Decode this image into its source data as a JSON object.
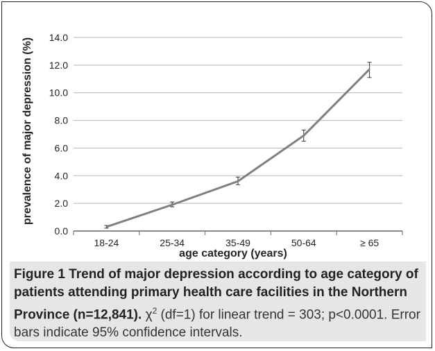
{
  "chart_data": {
    "type": "line",
    "categories": [
      "18-24",
      "25-34",
      "35-49",
      "50-64",
      "≥ 65"
    ],
    "values": [
      0.3,
      1.9,
      3.6,
      6.9,
      11.7
    ],
    "error_low": [
      0.2,
      1.75,
      3.35,
      6.5,
      11.1
    ],
    "error_high": [
      0.4,
      2.1,
      3.9,
      7.3,
      12.2
    ],
    "yticks": [
      "0.0",
      "2.0",
      "4.0",
      "6.0",
      "8.0",
      "10.0",
      "12.0",
      "14.0"
    ],
    "ylim": [
      0,
      14
    ],
    "xlabel": "age category (years)",
    "ylabel": "prevalence of major depression (%)",
    "grid": true,
    "line_color": "#7f7f7f"
  },
  "caption": {
    "title": "Figure 1 Trend of major depression according to age category of patients attending primary health care facilities in the Northern Province (n=12,841).",
    "chi_symbol": "χ",
    "chi_superscript": "2",
    "stats": " (df=1) for linear trend = 303; p<0.0001. Error bars indicate 95% confidence intervals."
  }
}
